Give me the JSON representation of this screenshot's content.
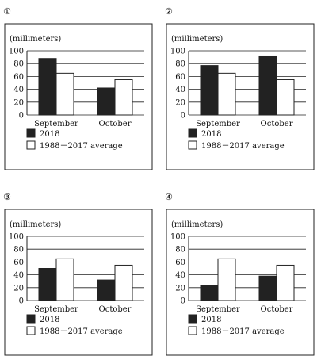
{
  "chart_data": [
    {
      "type": "bar",
      "label": "①",
      "ylabel": "(millimeters)",
      "categories": [
        "September",
        "October"
      ],
      "ylim": [
        0,
        100
      ],
      "yticks": [
        0,
        20,
        40,
        60,
        80,
        100
      ],
      "series": [
        {
          "name": "2018",
          "values": [
            88,
            42
          ],
          "color": "#222222"
        },
        {
          "name": "1988－2017 average",
          "values": [
            65,
            55
          ],
          "color": "#ffffff"
        }
      ]
    },
    {
      "type": "bar",
      "label": "②",
      "ylabel": "(millimeters)",
      "categories": [
        "September",
        "October"
      ],
      "ylim": [
        0,
        100
      ],
      "yticks": [
        0,
        20,
        40,
        60,
        80,
        100
      ],
      "series": [
        {
          "name": "2018",
          "values": [
            77,
            92
          ],
          "color": "#222222"
        },
        {
          "name": "1988－2017 average",
          "values": [
            65,
            55
          ],
          "color": "#ffffff"
        }
      ]
    },
    {
      "type": "bar",
      "label": "③",
      "ylabel": "(millimeters)",
      "categories": [
        "September",
        "October"
      ],
      "ylim": [
        0,
        100
      ],
      "yticks": [
        0,
        20,
        40,
        60,
        80,
        100
      ],
      "series": [
        {
          "name": "2018",
          "values": [
            50,
            32
          ],
          "color": "#222222"
        },
        {
          "name": "1988－2017 average",
          "values": [
            65,
            55
          ],
          "color": "#ffffff"
        }
      ]
    },
    {
      "type": "bar",
      "label": "④",
      "ylabel": "(millimeters)",
      "categories": [
        "September",
        "October"
      ],
      "ylim": [
        0,
        100
      ],
      "yticks": [
        0,
        20,
        40,
        60,
        80,
        100
      ],
      "series": [
        {
          "name": "2018",
          "values": [
            23,
            38
          ],
          "color": "#222222"
        },
        {
          "name": "1988－2017 average",
          "values": [
            65,
            55
          ],
          "color": "#ffffff"
        }
      ]
    }
  ]
}
